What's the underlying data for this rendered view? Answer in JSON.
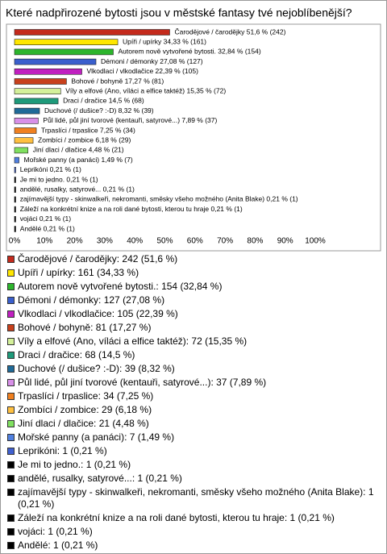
{
  "chart_data": {
    "type": "bar",
    "orientation": "horizontal",
    "title": "Které nadpřirozené bytosti jsou v městské fantasy tvé nejoblíbenější?",
    "categories": [
      "Čarodějové / čarodějky",
      "Upíři / upírky",
      "Autorem nově vytvořené bytosti.",
      "Démoni / démonky",
      "Vlkodlaci / vlkodlačice",
      "Bohové / bohyně",
      "Víly a elfové (Ano, víláci a elfice taktéž)",
      "Draci / dračice",
      "Duchové (/ dušice? :-D)",
      "Půl lidé, půl jiní tvorové (kentauři, satyrové...)",
      "Trpaslíci / trpaslice",
      "Zombíci / zombice",
      "Jiní dlaci / dlačice",
      "Mořské panny (a panáci)",
      "Leprikóni",
      "Je mi to jedno.",
      "andělé, rusalky, satyrové...",
      "zajímavější typy - skinwalkeři, nekromanti, směsky všeho možného (Anita Blake)",
      "Záleží na konkrétní knize a na roli dané bytosti, kterou tu hraje",
      "vojáci",
      "Andělé"
    ],
    "values": [
      51.6,
      34.33,
      32.84,
      27.08,
      22.39,
      17.27,
      15.35,
      14.5,
      8.32,
      7.89,
      7.25,
      6.18,
      4.48,
      1.49,
      0.21,
      0.21,
      0.21,
      0.21,
      0.21,
      0.21,
      0.21
    ],
    "value_labels": [
      "Čarodějové / čarodějky 51,6 % (242)",
      "Upíři / upírky 34,33 % (161)",
      "Autorem nově vytvořené bytosti. 32,84 % (154)",
      "Démoni / démonky 27,08 % (127)",
      "Vlkodlaci / vlkodlačice 22,39 % (105)",
      "Bohové / bohyně 17,27 % (81)",
      "Víly a elfové (Ano, víláci a elfice taktéž) 15,35 % (72)",
      "Draci / dračice 14,5 % (68)",
      "Duchové (/ dušice? :-D) 8,32 % (39)",
      "Půl lidé, půl jiní tvorové (kentauři, satyrové...) 7,89 % (37)",
      "Trpaslíci / trpaslice 7,25 % (34)",
      "Zombíci / zombice 6,18 % (29)",
      "Jiní dlaci / dlačice 4,48 % (21)",
      "Mořské panny (a panáci) 1,49 % (7)",
      "Leprikóni 0,21 % (1)",
      "Je mi to jedno. 0,21 % (1)",
      "andělé, rusalky, satyrové... 0,21 % (1)",
      "zajímavější typy - skinwalkeři, nekromanti, směsky všeho možného (Anita Blake) 0,21 % (1)",
      "Záleží na konkrétní knize a na roli dané bytosti, kterou tu hraje 0,21 % (1)",
      "vojáci 0,21 % (1)",
      "Andělé 0,21 % (1)"
    ],
    "colors": [
      "#c42a1c",
      "#ffe600",
      "#2cb52c",
      "#3a5fcd",
      "#c020c0",
      "#c8401c",
      "#d4f09a",
      "#1e9a7a",
      "#1f6a98",
      "#d890e8",
      "#f08020",
      "#ffc040",
      "#80e060",
      "#5080e0",
      "#4060d0",
      "#000000",
      "#000000",
      "#000000",
      "#000000",
      "#000000",
      "#000000"
    ],
    "legend": [
      "Čarodějové / čarodějky: 242 (51,6 %)",
      "Upíři / upírky: 161 (34,33 %)",
      "Autorem nově vytvořené bytosti.: 154 (32,84 %)",
      "Démoni / démonky: 127 (27,08 %)",
      "Vlkodlaci / vlkodlačice: 105 (22,39 %)",
      "Bohové / bohyně: 81 (17,27 %)",
      "Víly a elfové (Ano, víláci a elfice taktéž): 72 (15,35 %)",
      "Draci / dračice: 68 (14,5 %)",
      "Duchové (/ dušice? :-D): 39 (8,32 %)",
      "Půl lidé, půl jiní tvorové (kentauři, satyrové...): 37 (7,89 %)",
      "Trpaslíci / trpaslice: 34 (7,25 %)",
      "Zombíci / zombice: 29 (6,18 %)",
      "Jiní dlaci / dlačice: 21 (4,48 %)",
      "Mořské panny (a panáci): 7 (1,49 %)",
      "Leprikóni: 1 (0,21 %)",
      "Je mi to jedno.: 1 (0,21 %)",
      "andělé, rusalky, satyrové...: 1 (0,21 %)",
      "zajímavější typy - skinwalkeři, nekromanti, směsky všeho možného (Anita Blake): 1 (0,21 %)",
      "Záleží na konkrétní knize a na roli dané bytosti, kterou tu hraje: 1 (0,21 %)",
      "vojáci: 1 (0,21 %)",
      "Andělé: 1 (0,21 %)"
    ],
    "xlim": [
      0,
      100
    ],
    "xticks": [
      {
        "value": 0,
        "label": "0%"
      },
      {
        "value": 10,
        "label": "10%"
      },
      {
        "value": 20,
        "label": "20%"
      },
      {
        "value": 30,
        "label": "30%"
      },
      {
        "value": 40,
        "label": "40%"
      },
      {
        "value": 50,
        "label": "50%"
      },
      {
        "value": 60,
        "label": "60%"
      },
      {
        "value": 70,
        "label": "70%"
      },
      {
        "value": 80,
        "label": "80%"
      },
      {
        "value": 90,
        "label": "90%"
      },
      {
        "value": 100,
        "label": "100%"
      }
    ]
  }
}
